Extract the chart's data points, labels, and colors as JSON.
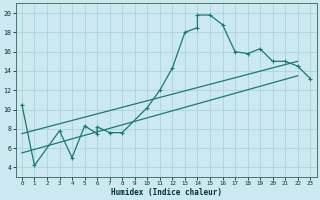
{
  "xlabel": "Humidex (Indice chaleur)",
  "bg_color": "#cce8f0",
  "grid_color": "#aad4e0",
  "line_color": "#1a7a6e",
  "xlim": [
    -0.5,
    23.5
  ],
  "ylim": [
    3.0,
    21.0
  ],
  "xticks": [
    0,
    1,
    2,
    3,
    4,
    5,
    6,
    7,
    8,
    9,
    10,
    11,
    12,
    13,
    14,
    15,
    16,
    17,
    18,
    19,
    20,
    21,
    22,
    23
  ],
  "yticks": [
    4,
    6,
    8,
    10,
    12,
    14,
    16,
    18,
    20
  ],
  "curve1_x": [
    0,
    1,
    3,
    4,
    5,
    6,
    6,
    7,
    8,
    10,
    11,
    12,
    13,
    14,
    14,
    15,
    16,
    17,
    18,
    19,
    20,
    21,
    22,
    23
  ],
  "curve1_y": [
    10.5,
    4.2,
    7.8,
    5.0,
    8.3,
    7.5,
    8.2,
    7.6,
    7.6,
    10.2,
    12.0,
    14.3,
    18.0,
    18.5,
    19.8,
    19.8,
    18.8,
    16.0,
    15.8,
    16.3,
    15.0,
    15.0,
    14.5,
    13.2
  ],
  "line2_x": [
    0,
    22
  ],
  "line2_y": [
    5.5,
    13.5
  ],
  "line3_x": [
    0,
    22
  ],
  "line3_y": [
    7.5,
    15.0
  ]
}
